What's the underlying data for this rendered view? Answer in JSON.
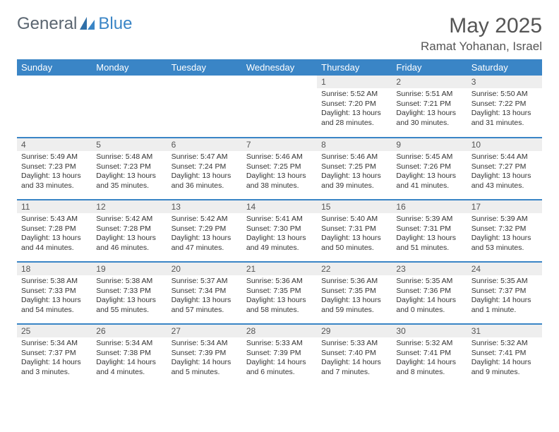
{
  "brand": {
    "part1": "General",
    "part2": "Blue"
  },
  "title": "May 2025",
  "location": "Ramat Yohanan, Israel",
  "style": {
    "accent": "#3a85c6",
    "header_bg": "#3a85c6",
    "header_fg": "#ffffff",
    "daynum_bg": "#eeeeee",
    "text_color": "#333333",
    "title_color": "#555555",
    "page_bg": "#ffffff",
    "row_border": "#3a85c6",
    "header_fontsize": 13,
    "daynum_fontsize": 12,
    "body_fontsize": 10.5,
    "title_fontsize": 30,
    "location_fontsize": 17
  },
  "weekdays": [
    "Sunday",
    "Monday",
    "Tuesday",
    "Wednesday",
    "Thursday",
    "Friday",
    "Saturday"
  ],
  "weeks": [
    [
      {
        "n": "",
        "lines": [
          "",
          "",
          "",
          ""
        ]
      },
      {
        "n": "",
        "lines": [
          "",
          "",
          "",
          ""
        ]
      },
      {
        "n": "",
        "lines": [
          "",
          "",
          "",
          ""
        ]
      },
      {
        "n": "",
        "lines": [
          "",
          "",
          "",
          ""
        ]
      },
      {
        "n": "1",
        "lines": [
          "Sunrise: 5:52 AM",
          "Sunset: 7:20 PM",
          "Daylight: 13 hours",
          "and 28 minutes."
        ]
      },
      {
        "n": "2",
        "lines": [
          "Sunrise: 5:51 AM",
          "Sunset: 7:21 PM",
          "Daylight: 13 hours",
          "and 30 minutes."
        ]
      },
      {
        "n": "3",
        "lines": [
          "Sunrise: 5:50 AM",
          "Sunset: 7:22 PM",
          "Daylight: 13 hours",
          "and 31 minutes."
        ]
      }
    ],
    [
      {
        "n": "4",
        "lines": [
          "Sunrise: 5:49 AM",
          "Sunset: 7:23 PM",
          "Daylight: 13 hours",
          "and 33 minutes."
        ]
      },
      {
        "n": "5",
        "lines": [
          "Sunrise: 5:48 AM",
          "Sunset: 7:23 PM",
          "Daylight: 13 hours",
          "and 35 minutes."
        ]
      },
      {
        "n": "6",
        "lines": [
          "Sunrise: 5:47 AM",
          "Sunset: 7:24 PM",
          "Daylight: 13 hours",
          "and 36 minutes."
        ]
      },
      {
        "n": "7",
        "lines": [
          "Sunrise: 5:46 AM",
          "Sunset: 7:25 PM",
          "Daylight: 13 hours",
          "and 38 minutes."
        ]
      },
      {
        "n": "8",
        "lines": [
          "Sunrise: 5:46 AM",
          "Sunset: 7:25 PM",
          "Daylight: 13 hours",
          "and 39 minutes."
        ]
      },
      {
        "n": "9",
        "lines": [
          "Sunrise: 5:45 AM",
          "Sunset: 7:26 PM",
          "Daylight: 13 hours",
          "and 41 minutes."
        ]
      },
      {
        "n": "10",
        "lines": [
          "Sunrise: 5:44 AM",
          "Sunset: 7:27 PM",
          "Daylight: 13 hours",
          "and 43 minutes."
        ]
      }
    ],
    [
      {
        "n": "11",
        "lines": [
          "Sunrise: 5:43 AM",
          "Sunset: 7:28 PM",
          "Daylight: 13 hours",
          "and 44 minutes."
        ]
      },
      {
        "n": "12",
        "lines": [
          "Sunrise: 5:42 AM",
          "Sunset: 7:28 PM",
          "Daylight: 13 hours",
          "and 46 minutes."
        ]
      },
      {
        "n": "13",
        "lines": [
          "Sunrise: 5:42 AM",
          "Sunset: 7:29 PM",
          "Daylight: 13 hours",
          "and 47 minutes."
        ]
      },
      {
        "n": "14",
        "lines": [
          "Sunrise: 5:41 AM",
          "Sunset: 7:30 PM",
          "Daylight: 13 hours",
          "and 49 minutes."
        ]
      },
      {
        "n": "15",
        "lines": [
          "Sunrise: 5:40 AM",
          "Sunset: 7:31 PM",
          "Daylight: 13 hours",
          "and 50 minutes."
        ]
      },
      {
        "n": "16",
        "lines": [
          "Sunrise: 5:39 AM",
          "Sunset: 7:31 PM",
          "Daylight: 13 hours",
          "and 51 minutes."
        ]
      },
      {
        "n": "17",
        "lines": [
          "Sunrise: 5:39 AM",
          "Sunset: 7:32 PM",
          "Daylight: 13 hours",
          "and 53 minutes."
        ]
      }
    ],
    [
      {
        "n": "18",
        "lines": [
          "Sunrise: 5:38 AM",
          "Sunset: 7:33 PM",
          "Daylight: 13 hours",
          "and 54 minutes."
        ]
      },
      {
        "n": "19",
        "lines": [
          "Sunrise: 5:38 AM",
          "Sunset: 7:33 PM",
          "Daylight: 13 hours",
          "and 55 minutes."
        ]
      },
      {
        "n": "20",
        "lines": [
          "Sunrise: 5:37 AM",
          "Sunset: 7:34 PM",
          "Daylight: 13 hours",
          "and 57 minutes."
        ]
      },
      {
        "n": "21",
        "lines": [
          "Sunrise: 5:36 AM",
          "Sunset: 7:35 PM",
          "Daylight: 13 hours",
          "and 58 minutes."
        ]
      },
      {
        "n": "22",
        "lines": [
          "Sunrise: 5:36 AM",
          "Sunset: 7:35 PM",
          "Daylight: 13 hours",
          "and 59 minutes."
        ]
      },
      {
        "n": "23",
        "lines": [
          "Sunrise: 5:35 AM",
          "Sunset: 7:36 PM",
          "Daylight: 14 hours",
          "and 0 minutes."
        ]
      },
      {
        "n": "24",
        "lines": [
          "Sunrise: 5:35 AM",
          "Sunset: 7:37 PM",
          "Daylight: 14 hours",
          "and 1 minute."
        ]
      }
    ],
    [
      {
        "n": "25",
        "lines": [
          "Sunrise: 5:34 AM",
          "Sunset: 7:37 PM",
          "Daylight: 14 hours",
          "and 3 minutes."
        ]
      },
      {
        "n": "26",
        "lines": [
          "Sunrise: 5:34 AM",
          "Sunset: 7:38 PM",
          "Daylight: 14 hours",
          "and 4 minutes."
        ]
      },
      {
        "n": "27",
        "lines": [
          "Sunrise: 5:34 AM",
          "Sunset: 7:39 PM",
          "Daylight: 14 hours",
          "and 5 minutes."
        ]
      },
      {
        "n": "28",
        "lines": [
          "Sunrise: 5:33 AM",
          "Sunset: 7:39 PM",
          "Daylight: 14 hours",
          "and 6 minutes."
        ]
      },
      {
        "n": "29",
        "lines": [
          "Sunrise: 5:33 AM",
          "Sunset: 7:40 PM",
          "Daylight: 14 hours",
          "and 7 minutes."
        ]
      },
      {
        "n": "30",
        "lines": [
          "Sunrise: 5:32 AM",
          "Sunset: 7:41 PM",
          "Daylight: 14 hours",
          "and 8 minutes."
        ]
      },
      {
        "n": "31",
        "lines": [
          "Sunrise: 5:32 AM",
          "Sunset: 7:41 PM",
          "Daylight: 14 hours",
          "and 9 minutes."
        ]
      }
    ]
  ]
}
